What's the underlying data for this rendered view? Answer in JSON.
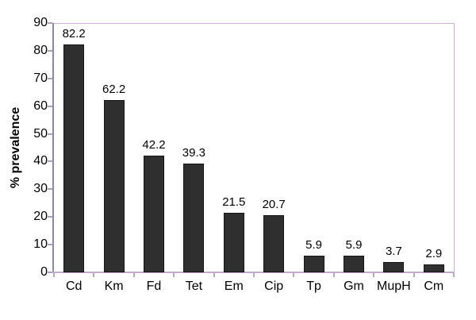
{
  "chart_data": {
    "type": "bar",
    "categories": [
      "Cd",
      "Km",
      "Fd",
      "Tet",
      "Em",
      "Cip",
      "Tp",
      "Gm",
      "MupH",
      "Cm"
    ],
    "values": [
      82.2,
      62.2,
      42.2,
      39.3,
      21.5,
      20.7,
      5.9,
      5.9,
      3.7,
      2.9
    ],
    "value_labels": [
      "82.2",
      "62.2",
      "42.2",
      "39.3",
      "21.5",
      "20.7",
      "5.9",
      "5.9",
      "3.7",
      "2.9"
    ],
    "title": "",
    "xlabel": "",
    "ylabel": "% prevalence",
    "ylim": [
      0,
      90
    ],
    "yticks": [
      0,
      10,
      20,
      30,
      40,
      50,
      60,
      70,
      80,
      90
    ],
    "grid": false,
    "legend": false,
    "colors": {
      "bar_fill": "#2f2f2f",
      "bar_border": "#141414",
      "plot_border": "#cfb3d6",
      "y_axis": "#8e86ab",
      "x_axis": "#c3a9cc",
      "tick": "#aaa3b8",
      "text": "#000000",
      "background": "#ffffff"
    }
  }
}
